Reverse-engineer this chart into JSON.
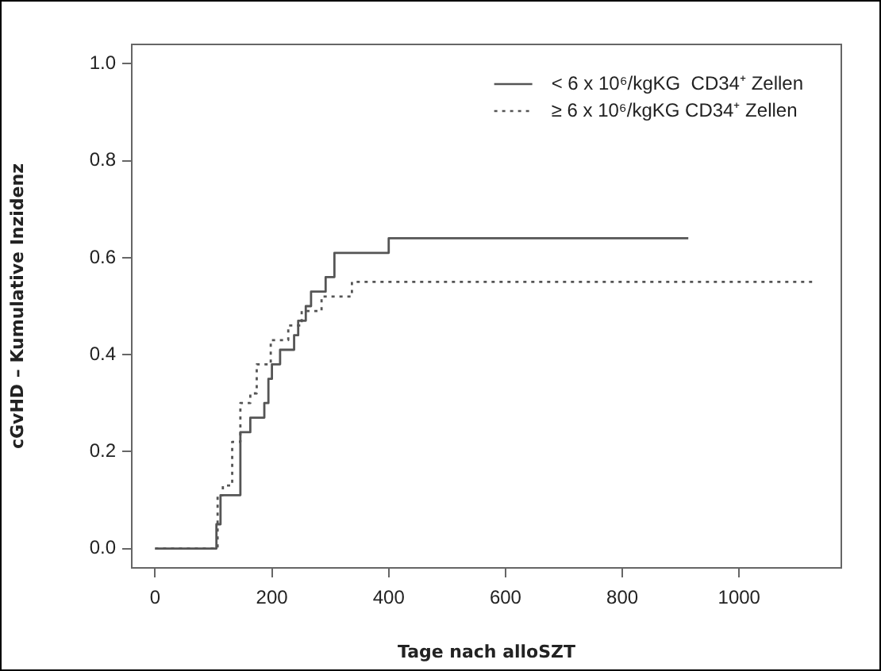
{
  "chart_data": {
    "type": "step",
    "xlabel": "Tage nach alloSZT",
    "ylabel": "cGvHD – Kumulative Inzidenz",
    "xlim": [
      -40,
      1175
    ],
    "ylim": [
      -0.04,
      1.04
    ],
    "xticks": [
      0,
      200,
      400,
      600,
      800,
      1000
    ],
    "yticks": [
      {
        "value": 0,
        "label": "0.0"
      },
      {
        "value": 0.2,
        "label": "0.2"
      },
      {
        "value": 0.4,
        "label": "0.4"
      },
      {
        "value": 0.6,
        "label": "0.6"
      },
      {
        "value": 0.8,
        "label": "0.8"
      },
      {
        "value": 1,
        "label": "1.0"
      }
    ],
    "grid": false,
    "legend": "top right",
    "marker": "none",
    "series": [
      {
        "name": "< 6 x 10⁶/kgKG  CD34⁺ Zellen",
        "color": "#555555",
        "line_style": "solid",
        "x": [
          0,
          105,
          112,
          146,
          163,
          187,
          194,
          200,
          214,
          238,
          245,
          258,
          267,
          292,
          307,
          400,
          913
        ],
        "values": [
          0,
          0.05,
          0.11,
          0.24,
          0.27,
          0.3,
          0.35,
          0.38,
          0.41,
          0.44,
          0.47,
          0.5,
          0.53,
          0.56,
          0.61,
          0.64,
          0.64
        ]
      },
      {
        "name": "≥ 6 x 10⁶/kgKG CD34⁺ Zellen",
        "color": "#555555",
        "line_style": "dotted",
        "x": [
          0,
          101,
          107,
          116,
          132,
          146,
          163,
          174,
          198,
          228,
          251,
          285,
          337,
          1125
        ],
        "values": [
          0,
          0,
          0.11,
          0.13,
          0.22,
          0.3,
          0.32,
          0.38,
          0.43,
          0.46,
          0.49,
          0.52,
          0.55,
          0.55
        ]
      }
    ]
  }
}
